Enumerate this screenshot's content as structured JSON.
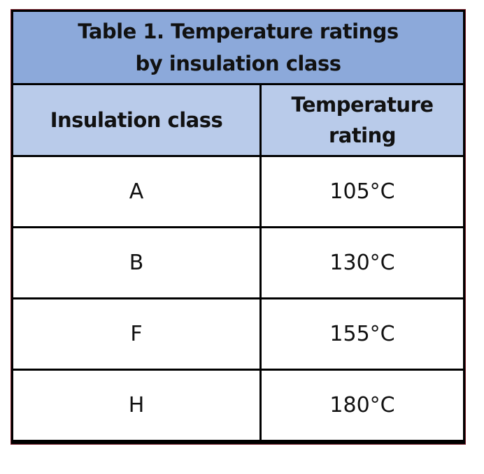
{
  "table": {
    "title": [
      "Table 1. Temperature ratings",
      "by insulation class"
    ],
    "header": [
      [
        "Insulation class"
      ],
      [
        "Temperature",
        "rating"
      ]
    ],
    "rows": [
      [
        "A",
        "105°C"
      ],
      [
        "B",
        "130°C"
      ],
      [
        "F",
        "155°C"
      ],
      [
        "H",
        "180°C"
      ]
    ]
  }
}
